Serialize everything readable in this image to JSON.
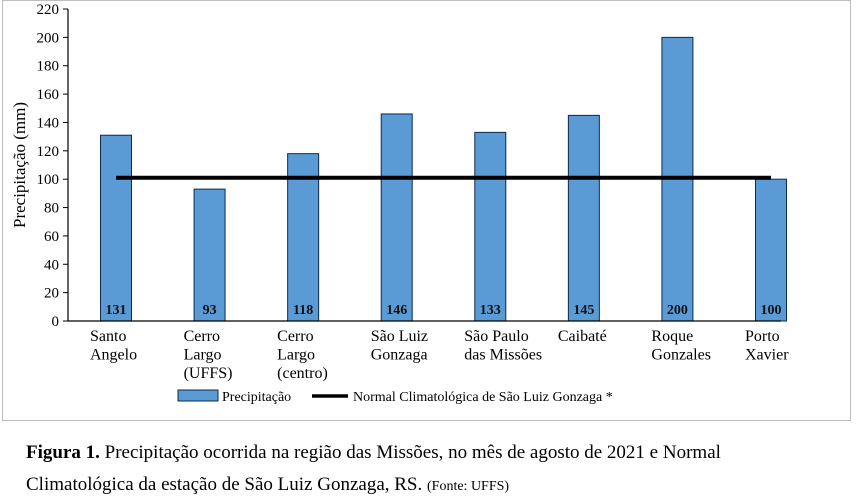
{
  "chart_data": {
    "type": "bar",
    "title": "",
    "xlabel": "",
    "ylabel": "Precipitação (mm)",
    "ylim": [
      0,
      220
    ],
    "yticks": [
      0,
      20,
      40,
      60,
      80,
      100,
      120,
      140,
      160,
      180,
      200,
      220
    ],
    "grid": false,
    "categories": [
      [
        "Santo",
        "Angelo"
      ],
      [
        "Cerro",
        "Largo",
        "(UFFS)"
      ],
      [
        "Cerro",
        "Largo",
        "(centro)"
      ],
      [
        "São Luiz",
        "Gonzaga"
      ],
      [
        "São Paulo",
        "das Missões"
      ],
      [
        "Caibaté"
      ],
      [
        "Roque",
        "Gonzales"
      ],
      [
        "Porto",
        "Xavier"
      ]
    ],
    "series": [
      {
        "name": "Precipitação",
        "type": "bar",
        "color": "#5b9bd5",
        "edge_color": "#0d2b4e",
        "values": [
          131,
          93,
          118,
          146,
          133,
          145,
          200,
          100
        ],
        "data_labels": [
          "131",
          "93",
          "118",
          "146",
          "133",
          "145",
          "200",
          "100"
        ]
      },
      {
        "name": "Normal Climatológica de São Luiz Gonzaga *",
        "type": "line",
        "color": "#000000",
        "value": 101
      }
    ],
    "legend": {
      "placement": "bottom-center",
      "entries": [
        "Precipitação",
        "Normal Climatológica de São Luiz Gonzaga *"
      ]
    }
  },
  "caption": {
    "label": "Figura 1.",
    "text_line1": " Precipitação ocorrida na região das Missões, no mês de agosto de 2021 e Normal",
    "text_line2": "Climatológica da estação de São Luiz Gonzaga, RS.",
    "source": "(Fonte: UFFS)"
  }
}
